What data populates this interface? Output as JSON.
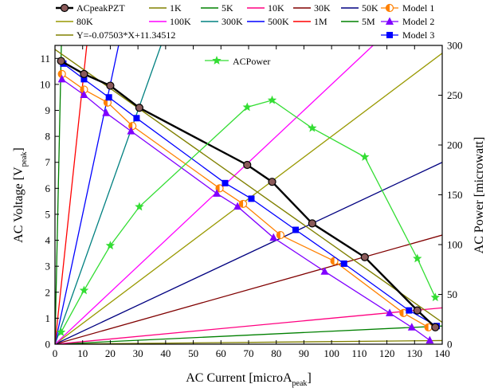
{
  "chart_data": {
    "type": "line",
    "xlabel": "AC Current [microA",
    "xlabel_sub": "peak",
    "xlabel_tail": "]",
    "ylabel": "AC Voltage [V",
    "ylabel_sub": "peak",
    "ylabel_tail": "]",
    "y2label": "AC Power [microwatt]",
    "xlim": [
      0,
      140
    ],
    "ylim": [
      0,
      11.5
    ],
    "y2lim": [
      0,
      300
    ],
    "x_ticks": [
      0,
      10,
      20,
      30,
      40,
      50,
      60,
      70,
      80,
      90,
      100,
      110,
      120,
      130,
      140
    ],
    "y_ticks": [
      0,
      1,
      2,
      3,
      4,
      5,
      6,
      7,
      8,
      9,
      10,
      11
    ],
    "y2_ticks": [
      0,
      50,
      100,
      150,
      200,
      250,
      300
    ],
    "load_lines": [
      {
        "name": "1K",
        "ohms": 1000,
        "color": "#808000"
      },
      {
        "name": "5K",
        "ohms": 5000,
        "color": "#008000"
      },
      {
        "name": "10K",
        "ohms": 10000,
        "color": "#ff0080"
      },
      {
        "name": "30K",
        "ohms": 30000,
        "color": "#800000"
      },
      {
        "name": "50K",
        "ohms": 50000,
        "color": "#000080"
      },
      {
        "name": "80K",
        "ohms": 80000,
        "color": "#999900"
      },
      {
        "name": "100K",
        "ohms": 100000,
        "color": "#ff00ff"
      },
      {
        "name": "300K",
        "ohms": 300000,
        "color": "#008080"
      },
      {
        "name": "500K",
        "ohms": 500000,
        "color": "#0000ff"
      },
      {
        "name": "1M",
        "ohms": 1000000,
        "color": "#ff0000"
      },
      {
        "name": "5M",
        "ohms": 5000000,
        "color": "#008000"
      }
    ],
    "fit_line": {
      "name": "Y=-0.07503*X+11.34512",
      "slope": -0.07503,
      "intercept": 11.34512,
      "color": "#808000"
    },
    "series": [
      {
        "name": "ACpeakPZT",
        "color": "#000000",
        "marker": "ball",
        "x": [
          2.2,
          10.5,
          20,
          30.5,
          69.5,
          78.5,
          93,
          112,
          131,
          137.5
        ],
        "y": [
          10.9,
          10.4,
          9.95,
          9.1,
          6.9,
          6.25,
          4.65,
          3.35,
          1.3,
          0.65
        ]
      },
      {
        "name": "Model 1",
        "color": "#ff8000",
        "marker": "half-circle",
        "x": [
          2.5,
          10.5,
          19,
          28,
          59.5,
          68,
          81.5,
          101,
          126,
          135
        ],
        "y": [
          10.4,
          9.8,
          9.3,
          8.4,
          6.0,
          5.4,
          4.2,
          3.2,
          1.2,
          0.65
        ]
      },
      {
        "name": "Model 2",
        "color": "#8000ff",
        "marker": "triangle",
        "x": [
          2.5,
          10.5,
          18.5,
          27.5,
          58.5,
          66,
          79,
          97.5,
          121,
          129,
          135.5
        ],
        "y": [
          10.2,
          9.6,
          8.9,
          8.2,
          5.8,
          5.3,
          4.1,
          2.8,
          1.2,
          0.65,
          0.15
        ]
      },
      {
        "name": "Model 3",
        "color": "#0000ff",
        "marker": "square",
        "x": [
          3,
          10.5,
          19.5,
          29.5,
          61.5,
          71,
          87,
          104.5,
          128,
          138
        ],
        "y": [
          10.8,
          10.2,
          9.5,
          8.7,
          6.2,
          5.6,
          4.4,
          3.1,
          1.3,
          0.7
        ]
      }
    ],
    "power_series": {
      "name": "ACPower",
      "color": "#33dd33",
      "marker": "star",
      "axis": "right",
      "x": [
        2.2,
        10.5,
        20,
        30.5,
        69.5,
        78.5,
        93,
        112,
        131,
        137.5
      ],
      "y": [
        12,
        54,
        99,
        138,
        238,
        245,
        217,
        188,
        86,
        47
      ]
    },
    "legend": {
      "placement": "top",
      "row1": [
        "ACpeakPZT",
        "1K",
        "5K",
        "10K",
        "30K",
        "50K"
      ],
      "row2": [
        "80K",
        "100K",
        "300K",
        "500K",
        "1M",
        "5M"
      ],
      "row3": [
        "Y=-0.07503*X+11.34512"
      ],
      "models": [
        "Model 1",
        "Model 2",
        "Model 3"
      ],
      "inner": "ACPower"
    }
  }
}
